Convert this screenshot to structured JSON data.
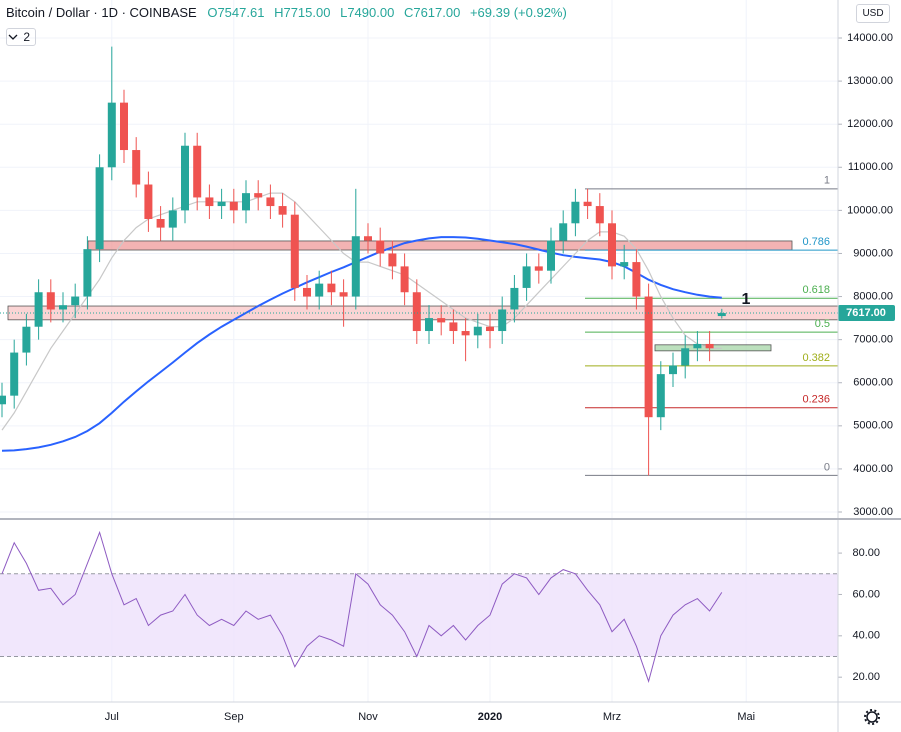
{
  "header": {
    "symbol": "Bitcoin / Dollar · 1D · COINBASE",
    "ohlc": [
      "O7547.61",
      "H7715.00",
      "L7490.00",
      "C7617.00",
      "+69.39 (+0.92%)"
    ],
    "indicator_count": "2",
    "currency": "USD"
  },
  "chart_data": [
    {
      "type": "candlestick",
      "categories": [
        null,
        null,
        null,
        null,
        null,
        null,
        null,
        null,
        null,
        "Jul",
        null,
        null,
        null,
        null,
        null,
        null,
        null,
        null,
        null,
        "Sep",
        null,
        null,
        null,
        null,
        null,
        null,
        null,
        null,
        null,
        null,
        "Nov",
        null,
        null,
        null,
        null,
        null,
        null,
        null,
        null,
        null,
        "2020",
        null,
        null,
        null,
        null,
        null,
        null,
        null,
        null,
        null,
        "Mrz",
        null,
        null,
        null,
        null,
        null,
        null,
        null,
        null,
        null,
        null,
        "Mai",
        null
      ],
      "open": [
        5500,
        5700,
        6700,
        7300,
        8100,
        7700,
        7800,
        8000,
        9100,
        11000,
        12500,
        11400,
        10600,
        9800,
        9600,
        10000,
        11500,
        10300,
        10100,
        10200,
        10000,
        10400,
        10300,
        10100,
        9900,
        8200,
        8000,
        8300,
        8100,
        8000,
        9400,
        9300,
        9000,
        8700,
        8100,
        7200,
        7500,
        7400,
        7200,
        7100,
        7300,
        7200,
        7700,
        8200,
        8700,
        8600,
        9300,
        9700,
        10200,
        10100,
        9700,
        8700,
        8800,
        8000,
        5200,
        6200,
        6400,
        6800,
        6900,
        7547.61,
        null,
        null,
        null
      ],
      "high": [
        6000,
        7000,
        7600,
        8400,
        8400,
        8100,
        8300,
        9400,
        11300,
        13800,
        12800,
        11700,
        10900,
        10100,
        10300,
        11800,
        11800,
        10600,
        10500,
        10500,
        10700,
        10700,
        10600,
        10400,
        10200,
        8500,
        8600,
        8600,
        8400,
        10500,
        9700,
        9600,
        9300,
        9000,
        8400,
        7800,
        7800,
        7700,
        7500,
        7600,
        7600,
        8000,
        8500,
        9000,
        9000,
        9600,
        10000,
        10500,
        10500,
        10400,
        10000,
        9200,
        9100,
        8300,
        6500,
        6700,
        7100,
        7200,
        7200,
        7715,
        null,
        null,
        null
      ],
      "low": [
        5200,
        5400,
        6400,
        7000,
        7400,
        7400,
        7500,
        7700,
        8800,
        10700,
        11100,
        10300,
        9500,
        9300,
        9300,
        9700,
        10000,
        9800,
        9800,
        9700,
        9700,
        10000,
        9800,
        9600,
        7900,
        7700,
        7700,
        7800,
        7300,
        7700,
        9000,
        8700,
        8400,
        7800,
        6900,
        6900,
        7100,
        6900,
        6500,
        6800,
        6800,
        6900,
        7400,
        7900,
        8300,
        8300,
        9000,
        9400,
        9800,
        9400,
        8400,
        8400,
        7700,
        3850,
        4900,
        5900,
        6100,
        6500,
        6500,
        7490,
        null,
        null,
        null
      ],
      "close": [
        5700,
        6700,
        7300,
        8100,
        7700,
        7800,
        8000,
        9100,
        11000,
        12500,
        11400,
        10600,
        9800,
        9600,
        10000,
        11500,
        10300,
        10100,
        10200,
        10000,
        10400,
        10300,
        10100,
        9900,
        8200,
        8000,
        8300,
        8100,
        8000,
        9400,
        9300,
        9000,
        8700,
        8100,
        7200,
        7500,
        7400,
        7200,
        7100,
        7300,
        7200,
        7700,
        8200,
        8700,
        8600,
        9300,
        9700,
        10200,
        10100,
        9700,
        8700,
        8800,
        8000,
        5200,
        6200,
        6400,
        6800,
        6900,
        6800,
        7617,
        null,
        null,
        null
      ],
      "up_color": "#26a69a",
      "down_color": "#ef5350",
      "lines": [
        {
          "color": "#2962ff",
          "values": [
            4420,
            4430,
            4460,
            4500,
            4560,
            4640,
            4740,
            4880,
            5060,
            5300,
            5560,
            5800,
            6030,
            6250,
            6470,
            6700,
            6920,
            7120,
            7300,
            7460,
            7620,
            7780,
            7930,
            8070,
            8200,
            8330,
            8450,
            8570,
            8680,
            8800,
            8920,
            9040,
            9140,
            9240,
            9300,
            9350,
            9380,
            9380,
            9370,
            9340,
            9300,
            9260,
            9220,
            9160,
            9090,
            9020,
            8960,
            8920,
            8890,
            8860,
            8800,
            8700,
            8550,
            8390,
            8270,
            8170,
            8100,
            8040,
            8000,
            7970,
            null,
            null,
            null
          ]
        },
        {
          "color": "#c8c8c8",
          "values": [
            4900,
            5300,
            5800,
            6300,
            6800,
            7200,
            7600,
            8000,
            8400,
            8900,
            9300,
            9600,
            9800,
            9900,
            10000,
            10100,
            10200,
            10200,
            10200,
            10200,
            10200,
            10300,
            10400,
            10400,
            10200,
            9900,
            9600,
            9300,
            9000,
            8800,
            8800,
            8700,
            8600,
            8500,
            8300,
            8100,
            7900,
            7700,
            7500,
            7400,
            7300,
            7300,
            7500,
            7800,
            8100,
            8400,
            8700,
            9000,
            9300,
            9500,
            9500,
            9400,
            9100,
            8600,
            8000,
            7500,
            7100,
            6900,
            6800,
            6800,
            null,
            null,
            null
          ]
        }
      ],
      "zones": [
        {
          "top": 9290,
          "bottom": 9080,
          "color": "#ef9a9a"
        },
        {
          "top": 7780,
          "bottom": 7460,
          "color": "#f8c6c6"
        },
        {
          "top": 6880,
          "bottom": 6740,
          "color": "#a5d6a7"
        }
      ],
      "fib": [
        {
          "level": 1,
          "price": 10500,
          "color": "#787b86"
        },
        {
          "level": 0.786,
          "price": 9077,
          "color": "#2196c8"
        },
        {
          "level": 0.618,
          "price": 7960,
          "color": "#4caf50"
        },
        {
          "level": 0.5,
          "price": 7175,
          "color": "#4caf50"
        },
        {
          "level": 0.382,
          "price": 6390,
          "color": "#9fae1a"
        },
        {
          "level": 0.236,
          "price": 5420,
          "color": "#c62828"
        },
        {
          "level": 0,
          "price": 3850,
          "color": "#787b86"
        }
      ],
      "annotation": "1",
      "last_price": {
        "value": 7617,
        "label": "7617.00"
      },
      "ylim": [
        2861,
        14882
      ],
      "yticks": [
        {
          "value": 3000,
          "label": "3000.00"
        },
        {
          "value": 4000,
          "label": "4000.00"
        },
        {
          "value": 5000,
          "label": "5000.00"
        },
        {
          "value": 6000,
          "label": "6000.00"
        },
        {
          "value": 7000,
          "label": "7000.00"
        },
        {
          "value": 8000,
          "label": "8000.00"
        },
        {
          "value": 9000,
          "label": "9000.00"
        },
        {
          "value": 10000,
          "label": "10000.00"
        },
        {
          "value": 11000,
          "label": "11000.00"
        },
        {
          "value": 12000,
          "label": "12000.00"
        },
        {
          "value": 13000,
          "label": "13000.00"
        },
        {
          "value": 14000,
          "label": "14000.00"
        }
      ],
      "grid": true
    },
    {
      "type": "line",
      "color": "#8e5bc2",
      "band_color": "#ede1fb",
      "values": [
        70,
        85,
        75,
        62,
        63,
        55,
        60,
        75,
        90,
        70,
        55,
        58,
        45,
        50,
        52,
        60,
        50,
        45,
        48,
        45,
        52,
        48,
        50,
        40,
        25,
        35,
        40,
        38,
        35,
        70,
        65,
        55,
        50,
        42,
        30,
        45,
        40,
        45,
        38,
        45,
        50,
        65,
        70,
        68,
        60,
        68,
        72,
        70,
        62,
        55,
        42,
        48,
        35,
        18,
        40,
        50,
        55,
        58,
        52,
        61,
        null,
        null,
        null
      ],
      "band": [
        30,
        70
      ],
      "ylim": [
        8,
        96
      ],
      "yticks": [
        {
          "value": 20,
          "label": "20.00"
        },
        {
          "value": 40,
          "label": "40.00"
        },
        {
          "value": 60,
          "label": "60.00"
        },
        {
          "value": 80,
          "label": "80.00"
        }
      ],
      "grid": true
    }
  ]
}
